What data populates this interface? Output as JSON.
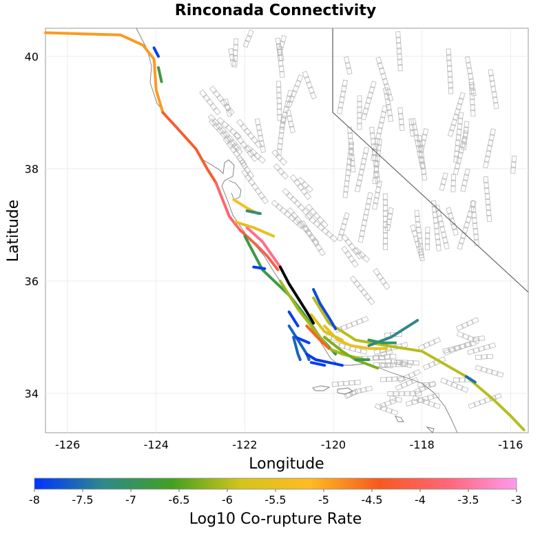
{
  "title": "Rinconada Connectivity",
  "x_axis": {
    "label": "Longitude",
    "range": [
      -126.5,
      -115.6
    ],
    "ticks": [
      -126,
      -124,
      -122,
      -120,
      -118,
      -116
    ],
    "tick_labels": [
      "-126",
      "-124",
      "-122",
      "-120",
      "-118",
      "-116"
    ]
  },
  "y_axis": {
    "label": "Latitude",
    "range": [
      33.3,
      40.5
    ],
    "ticks": [
      34,
      36,
      38,
      40
    ],
    "tick_labels": [
      "34",
      "36",
      "38",
      "40"
    ]
  },
  "colorbar": {
    "label": "Log10 Co-rupture Rate",
    "range": [
      -8,
      -3
    ],
    "ticks": [
      -8,
      -7.5,
      -7,
      -6.5,
      -6,
      -5.5,
      -5,
      -4.5,
      -4,
      -3.5,
      -3
    ],
    "tick_labels": [
      "-8",
      "-7.5",
      "-7",
      "-6.5",
      "-6",
      "-5.5",
      "-5",
      "-4.5",
      "-4",
      "-3.5",
      "-3"
    ],
    "stops": [
      "#0033ff",
      "#2d8a8a",
      "#44a020",
      "#d4c41c",
      "#ffbb22",
      "#f75a1e",
      "#ff6677",
      "#ff99ee"
    ]
  },
  "source_fault": {
    "name": "Rinconada",
    "color": "#000000"
  },
  "chart_data": {
    "type": "map",
    "title": "Rinconada Connectivity",
    "xlabel": "Longitude",
    "ylabel": "Latitude",
    "xlim": [
      -126.5,
      -115.6
    ],
    "ylim": [
      33.3,
      40.5
    ],
    "color_scale": {
      "label": "Log10 Co-rupture Rate",
      "min": -8,
      "max": -3
    },
    "fault_traces": [
      {
        "id": "rinconada",
        "rate": null,
        "source": true,
        "points": [
          [
            -121.2,
            36.25
          ],
          [
            -121.0,
            35.95
          ],
          [
            -120.8,
            35.7
          ],
          [
            -120.6,
            35.45
          ],
          [
            -120.45,
            35.25
          ]
        ]
      },
      {
        "id": "mendocino-offshore",
        "rate": -4.9,
        "points": [
          [
            -126.5,
            40.42
          ],
          [
            -124.8,
            40.38
          ],
          [
            -124.3,
            40.2
          ],
          [
            -124.05,
            39.95
          ],
          [
            -124.0,
            39.4
          ],
          [
            -123.85,
            39.0
          ]
        ]
      },
      {
        "id": "san-andreas-north",
        "rate": -4.3,
        "points": [
          [
            -123.85,
            39.0
          ],
          [
            -123.5,
            38.7
          ],
          [
            -123.1,
            38.35
          ],
          [
            -122.85,
            38.0
          ],
          [
            -122.65,
            37.75
          ]
        ]
      },
      {
        "id": "san-andreas-peninsula",
        "rate": -3.8,
        "points": [
          [
            -122.65,
            37.75
          ],
          [
            -122.5,
            37.45
          ],
          [
            -122.35,
            37.15
          ],
          [
            -122.1,
            36.9
          ]
        ]
      },
      {
        "id": "san-andreas-creeping",
        "rate": -4.1,
        "points": [
          [
            -122.1,
            36.9
          ],
          [
            -121.75,
            36.65
          ],
          [
            -121.5,
            36.45
          ],
          [
            -121.25,
            36.2
          ]
        ]
      },
      {
        "id": "calaveras",
        "rate": -3.6,
        "points": [
          [
            -121.95,
            36.95
          ],
          [
            -121.6,
            36.7
          ],
          [
            -121.2,
            36.25
          ]
        ]
      },
      {
        "id": "sa-parkfield",
        "rate": -6.8,
        "points": [
          [
            -122.0,
            36.8
          ],
          [
            -121.6,
            36.2
          ],
          [
            -121.0,
            35.75
          ],
          [
            -120.7,
            35.45
          ],
          [
            -120.3,
            35.0
          ],
          [
            -119.95,
            34.7
          ]
        ]
      },
      {
        "id": "san-gregorio",
        "rate": -5.6,
        "points": [
          [
            -122.2,
            37.05
          ],
          [
            -121.8,
            36.95
          ],
          [
            -121.35,
            36.8
          ]
        ]
      },
      {
        "id": "hayward-south",
        "rate": -5.3,
        "points": [
          [
            -122.25,
            37.45
          ],
          [
            -121.95,
            37.3
          ],
          [
            -121.7,
            37.2
          ]
        ]
      },
      {
        "id": "greenville",
        "rate": -7.2,
        "points": [
          [
            -121.95,
            37.25
          ],
          [
            -121.65,
            37.2
          ]
        ]
      },
      {
        "id": "maacama",
        "rate": -6.8,
        "points": [
          [
            -123.95,
            39.8
          ],
          [
            -123.88,
            39.55
          ]
        ]
      },
      {
        "id": "bartlett-springs",
        "rate": -7.9,
        "points": [
          [
            -124.05,
            40.15
          ],
          [
            -123.95,
            40.0
          ]
        ]
      },
      {
        "id": "hosgri",
        "rate": -6.1,
        "points": [
          [
            -121.2,
            36.0
          ],
          [
            -120.8,
            35.5
          ],
          [
            -120.4,
            35.1
          ],
          [
            -120.1,
            34.8
          ],
          [
            -119.8,
            34.7
          ],
          [
            -119.3,
            34.6
          ]
        ]
      },
      {
        "id": "san-juan",
        "rate": -6.0,
        "points": [
          [
            -120.45,
            35.7
          ],
          [
            -120.1,
            35.25
          ],
          [
            -119.5,
            34.95
          ],
          [
            -118.8,
            34.85
          ],
          [
            -118.0,
            34.75
          ],
          [
            -117.0,
            34.3
          ],
          [
            -116.4,
            33.9
          ],
          [
            -116.0,
            33.6
          ],
          [
            -115.7,
            33.35
          ]
        ]
      },
      {
        "id": "la-panza",
        "rate": -5.5,
        "points": [
          [
            -120.2,
            35.2
          ],
          [
            -119.9,
            34.95
          ],
          [
            -119.6,
            34.85
          ],
          [
            -119.2,
            34.8
          ],
          [
            -118.8,
            34.8
          ]
        ]
      },
      {
        "id": "los-osos",
        "rate": -5.7,
        "points": [
          [
            -120.5,
            35.4
          ],
          [
            -120.2,
            35.1
          ],
          [
            -119.8,
            34.95
          ]
        ]
      },
      {
        "id": "big-pine",
        "rate": -6.3,
        "points": [
          [
            -120.2,
            35.0
          ],
          [
            -119.8,
            34.75
          ],
          [
            -119.5,
            34.6
          ],
          [
            -119.0,
            34.45
          ]
        ]
      },
      {
        "id": "lions-head",
        "rate": -4.5,
        "points": [
          [
            -120.6,
            35.2
          ],
          [
            -120.3,
            34.95
          ],
          [
            -120.1,
            34.8
          ]
        ]
      },
      {
        "id": "garlock-west",
        "rate": -7.3,
        "points": [
          [
            -119.2,
            34.85
          ],
          [
            -118.7,
            35.0
          ],
          [
            -118.3,
            35.2
          ],
          [
            -118.1,
            35.3
          ]
        ]
      },
      {
        "id": "pleito",
        "rate": -7.0,
        "points": [
          [
            -119.2,
            34.95
          ],
          [
            -118.9,
            34.9
          ],
          [
            -118.6,
            34.9
          ]
        ]
      },
      {
        "id": "santa-ynez",
        "rate": -6.9,
        "points": [
          [
            -119.5,
            34.6
          ],
          [
            -119.2,
            34.6
          ]
        ]
      },
      {
        "id": "nacimiento",
        "rate": -7.6,
        "points": [
          [
            -121.0,
            35.2
          ],
          [
            -120.8,
            34.95
          ],
          [
            -120.6,
            34.7
          ],
          [
            -120.55,
            34.6
          ]
        ]
      },
      {
        "id": "casmalia",
        "rate": -7.9,
        "points": [
          [
            -121.0,
            35.45
          ],
          [
            -120.8,
            35.2
          ]
        ]
      },
      {
        "id": "point-sal",
        "rate": -7.9,
        "points": [
          [
            -120.85,
            35.0
          ],
          [
            -120.55,
            34.9
          ]
        ]
      },
      {
        "id": "red-mountain",
        "rate": -7.95,
        "points": [
          [
            -120.6,
            34.7
          ],
          [
            -120.4,
            34.6
          ],
          [
            -120.1,
            34.55
          ],
          [
            -119.8,
            34.5
          ]
        ]
      },
      {
        "id": "oak-ridge",
        "rate": -7.9,
        "points": [
          [
            -120.5,
            34.55
          ],
          [
            -120.2,
            34.5
          ]
        ]
      },
      {
        "id": "rinconada-offshore",
        "rate": -7.9,
        "points": [
          [
            -121.8,
            36.25
          ],
          [
            -121.55,
            36.22
          ]
        ]
      },
      {
        "id": "cuyama",
        "rate": -7.8,
        "points": [
          [
            -120.45,
            35.85
          ],
          [
            -120.3,
            35.6
          ],
          [
            -120.1,
            35.35
          ],
          [
            -119.95,
            35.15
          ]
        ]
      },
      {
        "id": "santa-maria-river",
        "rate": -7.6,
        "points": [
          [
            -120.9,
            35.0
          ],
          [
            -120.8,
            34.7
          ],
          [
            -120.75,
            34.6
          ]
        ]
      },
      {
        "id": "cucamonga",
        "rate": -7.5,
        "points": [
          [
            -117.0,
            34.3
          ],
          [
            -116.8,
            34.2
          ]
        ]
      }
    ]
  }
}
